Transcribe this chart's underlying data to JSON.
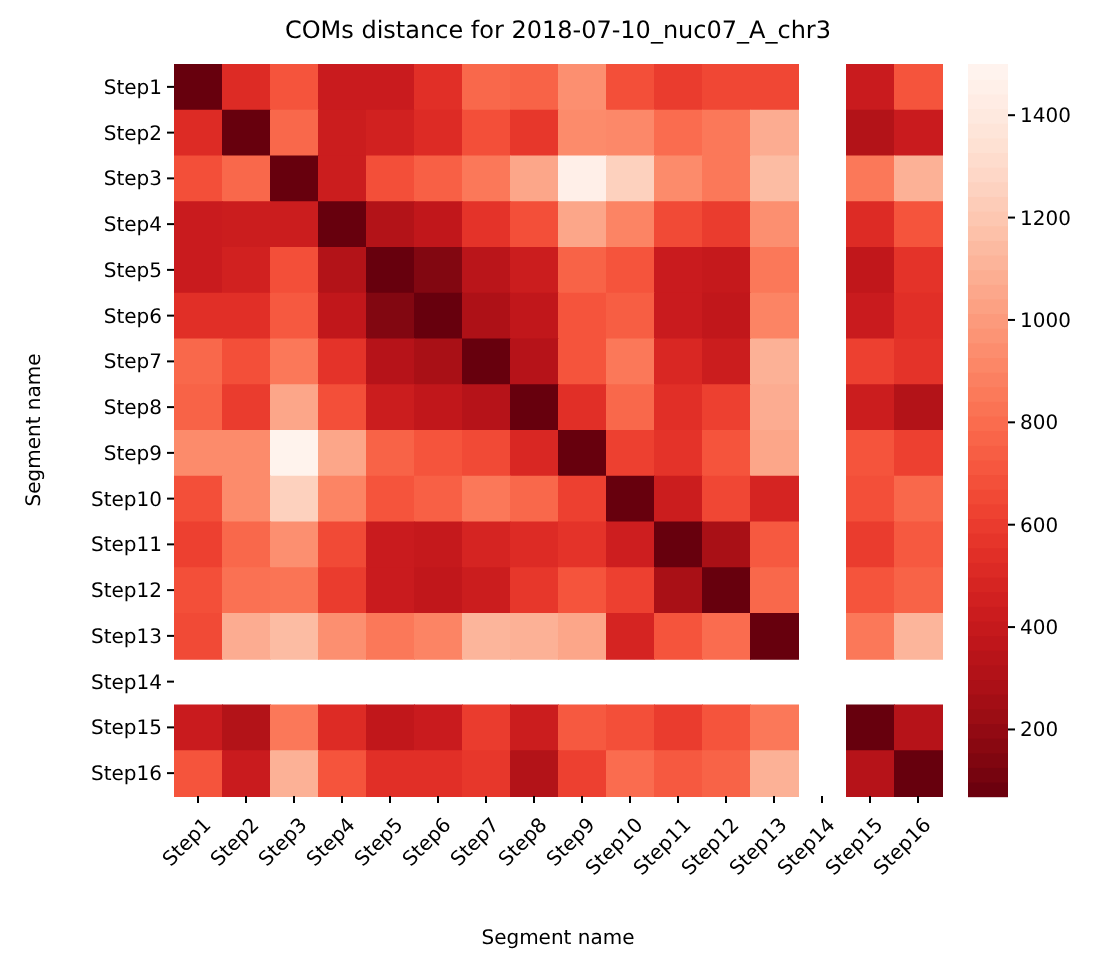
{
  "chart_data": {
    "type": "heatmap",
    "title": "COMs distance for 2018-07-10_nuc07_A_chr3",
    "xlabel": "Segment name",
    "ylabel": "Segment name",
    "categories": [
      "Step1",
      "Step2",
      "Step3",
      "Step4",
      "Step5",
      "Step6",
      "Step7",
      "Step8",
      "Step9",
      "Step10",
      "Step11",
      "Step12",
      "Step13",
      "Step14",
      "Step15",
      "Step16"
    ],
    "y_categories": [
      "Step1",
      "Step2",
      "Step3",
      "Step4",
      "Step5",
      "Step6",
      "Step7",
      "Step8",
      "Step9",
      "Step10",
      "Step11",
      "Step12",
      "Step13",
      "Step14",
      "Step15",
      "Step16"
    ],
    "cells": [
      [
        70,
        520,
        700,
        420,
        420,
        540,
        780,
        760,
        950,
        680,
        600,
        650,
        650,
        null,
        420,
        700
      ],
      [
        520,
        70,
        780,
        430,
        460,
        520,
        680,
        580,
        930,
        920,
        800,
        850,
        1080,
        null,
        320,
        420
      ],
      [
        680,
        780,
        70,
        430,
        680,
        750,
        850,
        1050,
        1450,
        1250,
        930,
        850,
        1150,
        null,
        850,
        1100
      ],
      [
        420,
        430,
        430,
        70,
        320,
        380,
        560,
        680,
        1050,
        900,
        660,
        600,
        950,
        null,
        520,
        700
      ],
      [
        420,
        460,
        680,
        320,
        70,
        150,
        350,
        430,
        760,
        700,
        420,
        400,
        850,
        null,
        380,
        560
      ],
      [
        540,
        540,
        720,
        380,
        150,
        70,
        300,
        380,
        700,
        740,
        420,
        380,
        900,
        null,
        420,
        540
      ],
      [
        780,
        680,
        850,
        560,
        330,
        280,
        70,
        330,
        700,
        850,
        500,
        430,
        1100,
        null,
        620,
        560
      ],
      [
        760,
        600,
        1050,
        680,
        430,
        380,
        330,
        70,
        540,
        780,
        540,
        620,
        1080,
        null,
        430,
        320
      ],
      [
        930,
        930,
        1480,
        1050,
        760,
        700,
        660,
        500,
        70,
        620,
        560,
        700,
        1050,
        null,
        700,
        620
      ],
      [
        680,
        930,
        1250,
        900,
        700,
        750,
        850,
        780,
        620,
        70,
        430,
        650,
        480,
        null,
        680,
        780
      ],
      [
        620,
        780,
        950,
        660,
        420,
        400,
        480,
        520,
        560,
        440,
        70,
        280,
        720,
        null,
        600,
        720
      ],
      [
        680,
        820,
        830,
        600,
        420,
        380,
        430,
        580,
        700,
        620,
        280,
        70,
        780,
        null,
        700,
        760
      ],
      [
        660,
        1080,
        1150,
        950,
        850,
        900,
        1120,
        1100,
        1050,
        480,
        700,
        800,
        70,
        null,
        850,
        1120
      ],
      [
        null,
        null,
        null,
        null,
        null,
        null,
        null,
        null,
        null,
        null,
        null,
        null,
        null,
        null,
        null,
        null
      ],
      [
        420,
        320,
        850,
        520,
        380,
        420,
        600,
        430,
        720,
        680,
        600,
        700,
        850,
        null,
        70,
        330
      ],
      [
        700,
        420,
        1100,
        700,
        540,
        540,
        580,
        320,
        620,
        800,
        720,
        760,
        1100,
        null,
        330,
        70
      ]
    ],
    "clim": [
      70,
      1500
    ],
    "cticks": [
      200,
      400,
      600,
      800,
      1000,
      1200,
      1400
    ]
  }
}
